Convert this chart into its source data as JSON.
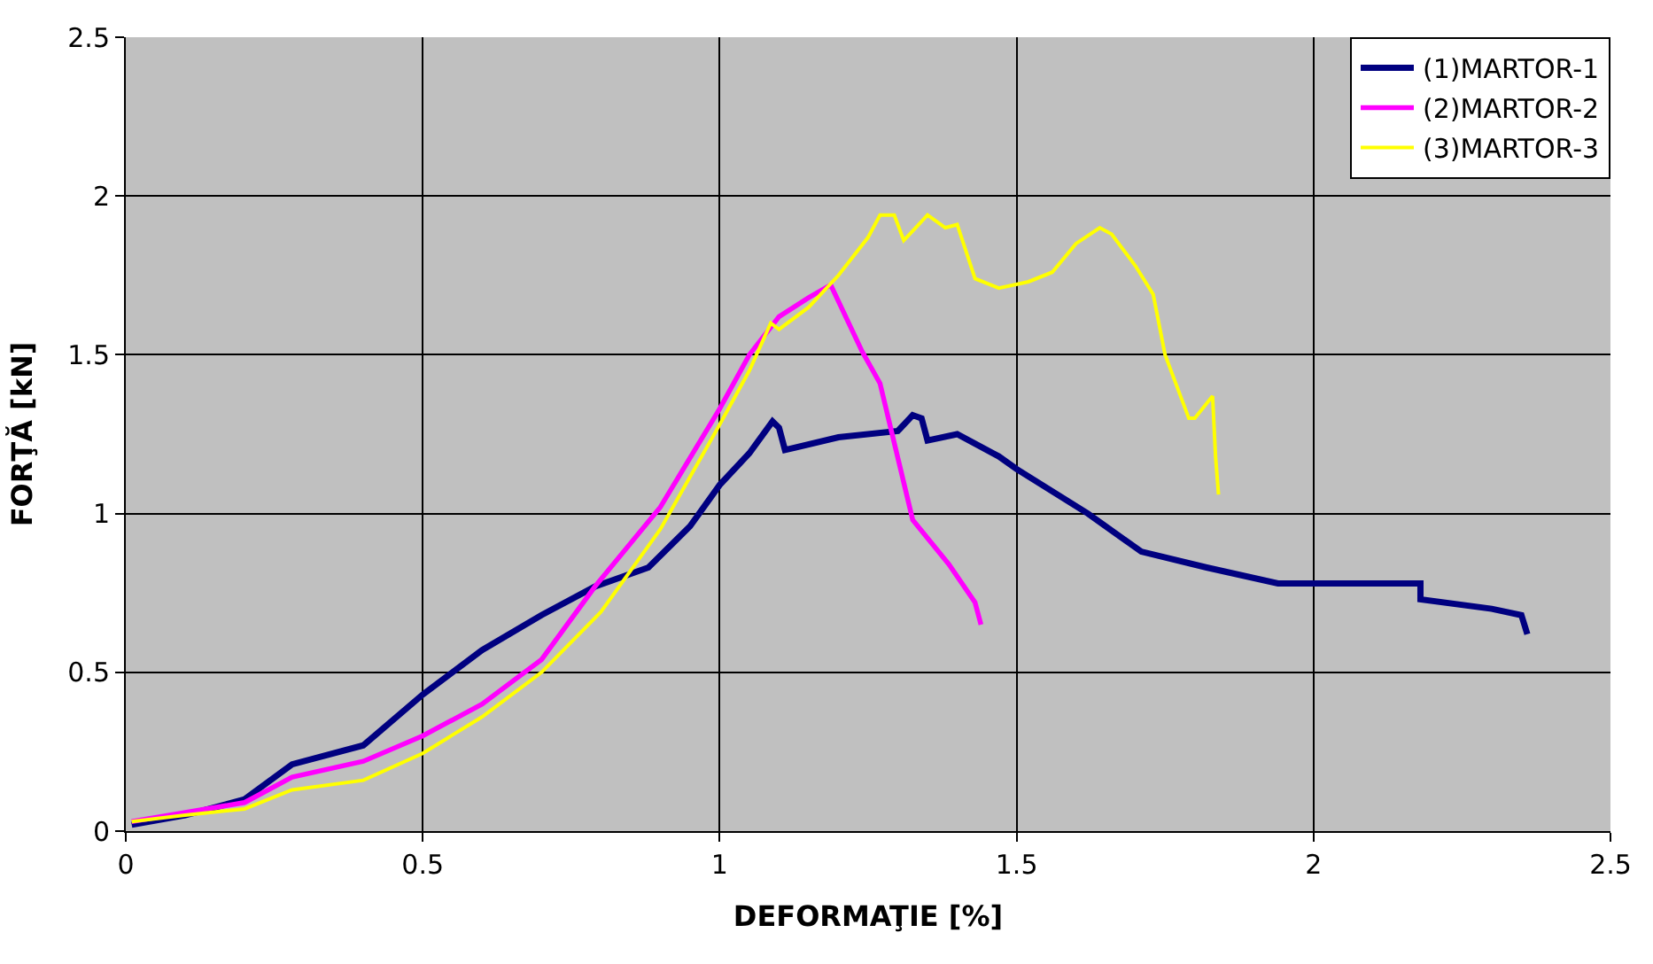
{
  "chart_data": {
    "type": "line",
    "xlabel": "DEFORMAŢIE [%]",
    "ylabel": "FORŢĂ [kN]",
    "xlim": [
      0,
      2.5
    ],
    "xticks": [
      0,
      0.5,
      1,
      1.5,
      2,
      2.5
    ],
    "ylim": [
      0,
      2.5
    ],
    "yticks": [
      0,
      0.5,
      1,
      1.5,
      2,
      2.5
    ],
    "grid": true,
    "legend": "top right",
    "marker": "none",
    "line_style": "solid",
    "series": [
      {
        "name": "(1)MARTOR-1",
        "color": "#000080",
        "x": [
          0.01,
          0.1,
          0.2,
          0.28,
          0.4,
          0.5,
          0.6,
          0.7,
          0.79,
          0.88,
          0.95,
          1.0,
          1.05,
          1.089,
          1.1,
          1.11,
          1.2,
          1.3,
          1.325,
          1.34,
          1.35,
          1.4,
          1.47,
          1.5,
          1.62,
          1.71,
          1.82,
          1.94,
          2.04,
          2.18,
          2.18,
          2.3,
          2.35,
          2.36
        ],
        "values": [
          0.02,
          0.05,
          0.1,
          0.21,
          0.27,
          0.43,
          0.57,
          0.68,
          0.77,
          0.83,
          0.96,
          1.09,
          1.19,
          1.29,
          1.27,
          1.2,
          1.24,
          1.26,
          1.31,
          1.3,
          1.23,
          1.25,
          1.18,
          1.14,
          1.0,
          0.88,
          0.83,
          0.78,
          0.78,
          0.78,
          0.73,
          0.7,
          0.68,
          0.62
        ]
      },
      {
        "name": "(2)MARTOR-2",
        "color": "#ff00ff",
        "x": [
          0.01,
          0.2,
          0.28,
          0.4,
          0.5,
          0.6,
          0.7,
          0.79,
          0.9,
          1.0,
          1.05,
          1.1,
          1.15,
          1.187,
          1.24,
          1.27,
          1.325,
          1.386,
          1.43,
          1.44
        ],
        "values": [
          0.03,
          0.09,
          0.17,
          0.22,
          0.3,
          0.4,
          0.54,
          0.77,
          1.02,
          1.33,
          1.5,
          1.62,
          1.68,
          1.72,
          1.51,
          1.41,
          0.98,
          0.84,
          0.72,
          0.65
        ]
      },
      {
        "name": "(3)MARTOR-3",
        "color": "#ffff00",
        "x": [
          0.01,
          0.1,
          0.2,
          0.28,
          0.4,
          0.5,
          0.6,
          0.7,
          0.8,
          0.9,
          1.0,
          1.05,
          1.086,
          1.1,
          1.15,
          1.2,
          1.25,
          1.27,
          1.294,
          1.31,
          1.33,
          1.35,
          1.38,
          1.4,
          1.43,
          1.47,
          1.52,
          1.56,
          1.6,
          1.64,
          1.66,
          1.7,
          1.73,
          1.75,
          1.78,
          1.79,
          1.8,
          1.83,
          1.835,
          1.84
        ],
        "values": [
          0.03,
          0.05,
          0.07,
          0.13,
          0.16,
          0.245,
          0.36,
          0.5,
          0.69,
          0.95,
          1.28,
          1.45,
          1.6,
          1.58,
          1.65,
          1.75,
          1.87,
          1.94,
          1.94,
          1.86,
          1.9,
          1.94,
          1.9,
          1.91,
          1.74,
          1.71,
          1.73,
          1.76,
          1.85,
          1.9,
          1.88,
          1.78,
          1.69,
          1.5,
          1.35,
          1.3,
          1.3,
          1.37,
          1.18,
          1.06
        ]
      }
    ]
  }
}
